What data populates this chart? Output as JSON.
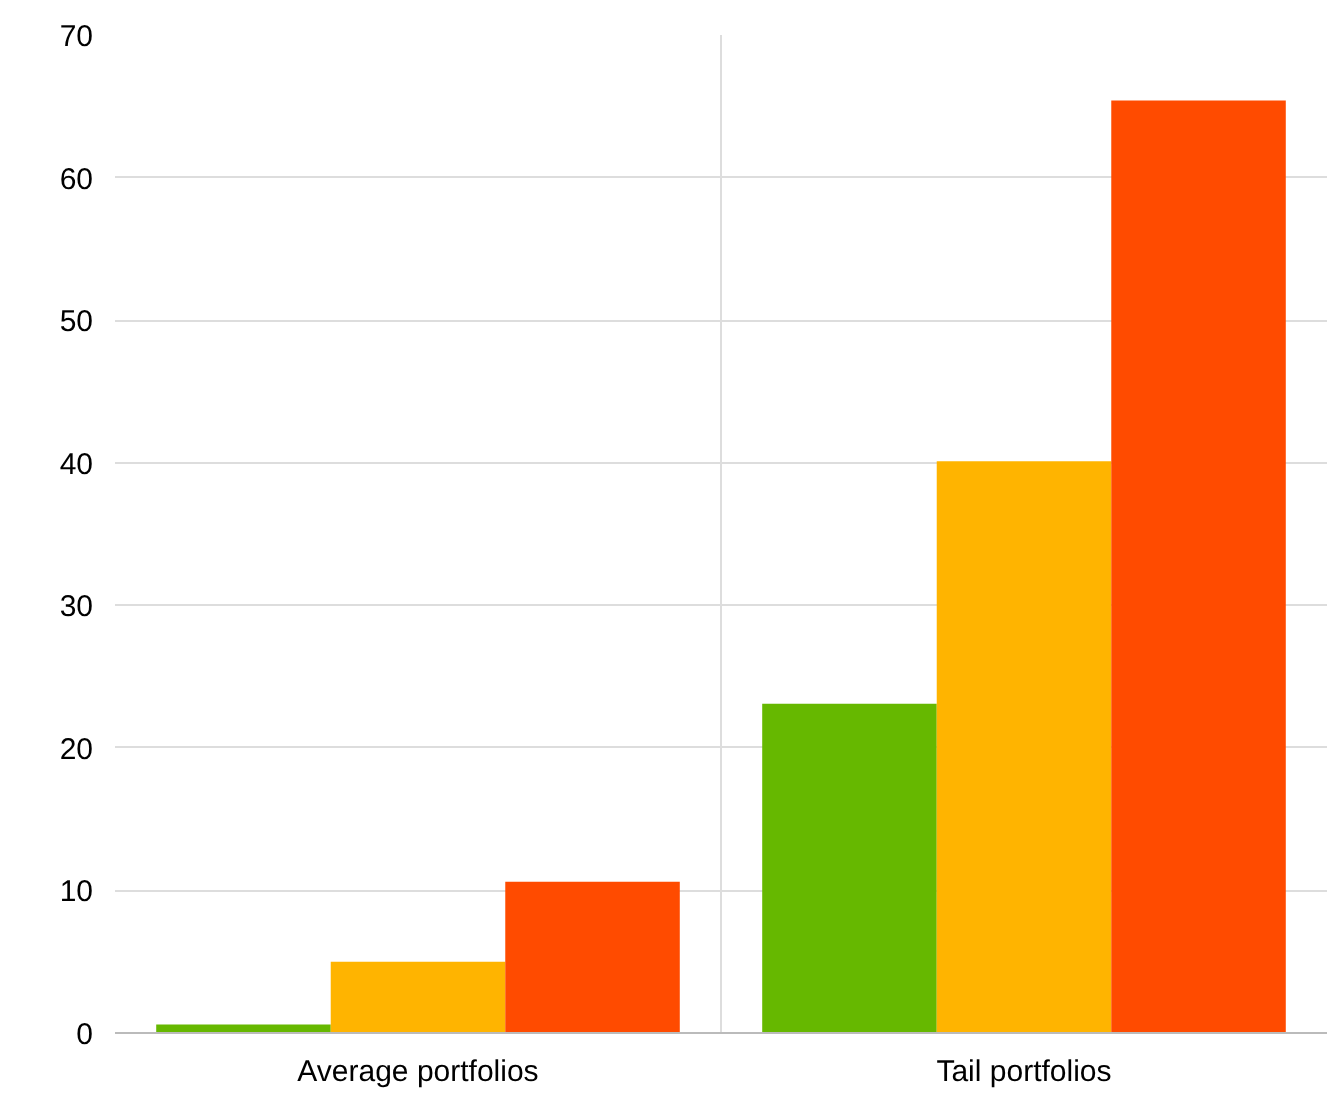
{
  "chart_data": {
    "type": "bar",
    "categories": [
      "Average portfolios",
      "Tail portfolios"
    ],
    "series": [
      {
        "color": "#66b800",
        "values": [
          0.6,
          23.1
        ]
      },
      {
        "color": "#ffb400",
        "values": [
          5.0,
          40.1
        ]
      },
      {
        "color": "#ff4b00",
        "values": [
          10.6,
          65.4
        ]
      }
    ],
    "ylim": [
      0,
      70
    ],
    "yticks": [
      0,
      10,
      20,
      30,
      40,
      50,
      60,
      70
    ],
    "grid": true
  }
}
